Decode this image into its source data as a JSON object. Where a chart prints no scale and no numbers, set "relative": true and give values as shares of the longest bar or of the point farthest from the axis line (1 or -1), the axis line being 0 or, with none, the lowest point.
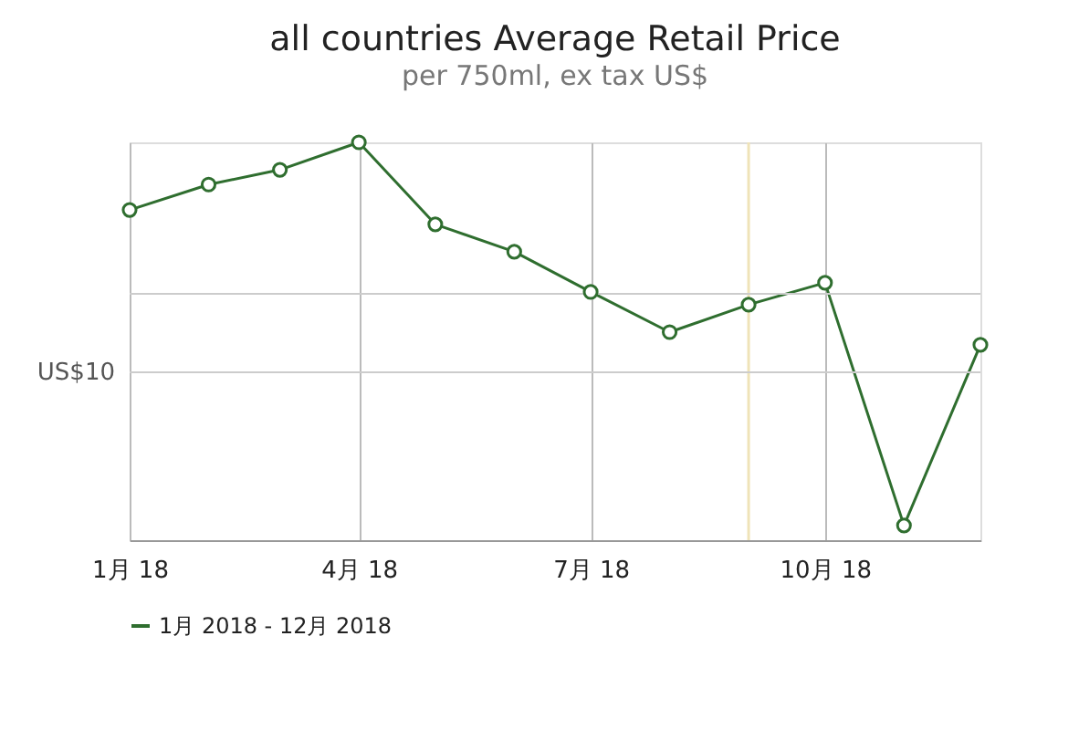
{
  "chart_data": {
    "type": "line",
    "title": "all countries Average Retail Price",
    "subtitle": "per 750ml, ex tax US$",
    "x": [
      "2018-01",
      "2018-02",
      "2018-03",
      "2018-04",
      "2018-05",
      "2018-06",
      "2018-07",
      "2018-08",
      "2018-09",
      "2018-10",
      "2018-11",
      "2018-12"
    ],
    "series": [
      {
        "name": "1月 2018 - 12月 2018",
        "color": "#2f6e2f",
        "values": [
          0.83,
          0.894,
          0.931,
          1,
          0.794,
          0.725,
          0.624,
          0.523,
          0.592,
          0.647,
          0.037,
          0.491
        ]
      }
    ],
    "relative": true,
    "xlim": [
      "2018-01",
      "2018-12"
    ],
    "xticks": [
      {
        "value": "2018-01",
        "label": "1月 18"
      },
      {
        "value": "2018-04",
        "label": "4月 18"
      },
      {
        "value": "2018-07",
        "label": "7月 18"
      },
      {
        "value": "2018-10",
        "label": "10月 18"
      }
    ],
    "ref_lines": [
      {
        "axis": "x",
        "value": "2018-09",
        "label": null,
        "color": "#efe3b8"
      },
      {
        "axis": "y",
        "value": 0.422,
        "label": "US$10",
        "color": "#cccccc"
      },
      {
        "axis": "y",
        "value": 0.619,
        "label": null,
        "color": "#cccccc"
      }
    ],
    "grid": "x",
    "legend": "bottom",
    "marker": "circle",
    "line_style": "solid"
  }
}
